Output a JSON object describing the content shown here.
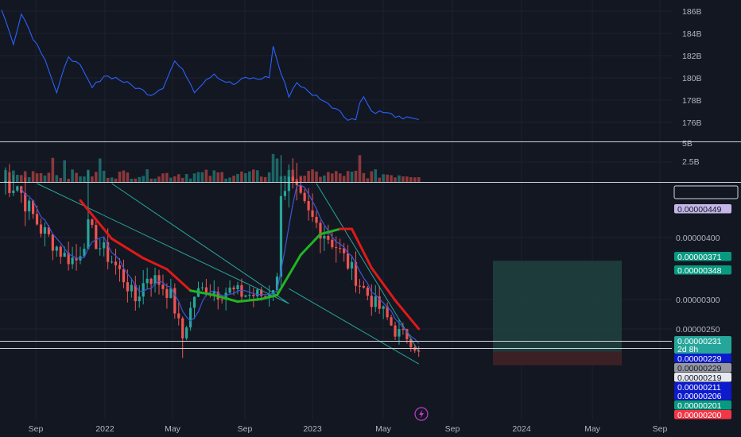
{
  "colors": {
    "background": "#131722",
    "grid": "#1e222d",
    "separator": "#d1d4dc",
    "bull": "#26a69a",
    "bear": "#ef5350",
    "supply_line": "#2962ff",
    "sma_fast": "#3d56d6",
    "sma_slow_bear": "#e01919",
    "sma_slow_bull": "#21b521",
    "trend_line": "#26a69a",
    "target_zone": "#1f3f3e",
    "stop_zone": "#3d2127",
    "lightning": "#c03ccd"
  },
  "time_axis": [
    "Sep",
    "2022",
    "May",
    "Sep",
    "2023",
    "May",
    "Sep",
    "2024",
    "May",
    "Sep"
  ],
  "supply_pane": {
    "tick_labels": [
      "186B",
      "184B",
      "182B",
      "180B",
      "178B",
      "176B"
    ]
  },
  "volume_pane": {
    "tick_labels": [
      "5B",
      "2.5B"
    ]
  },
  "price_pane": {
    "tick_labels": [
      "0.00000400",
      "0.00000300",
      "0.00000250"
    ],
    "tags": [
      {
        "text": "",
        "bg": "#131722",
        "fg": "#d1d4dc",
        "border": "#d1d4dc",
        "i": 0
      },
      {
        "text": "0.00000449",
        "bg": "#c5b6e8",
        "fg": "#131722",
        "i": 1
      },
      {
        "text": "0.00000371",
        "bg": "#089981",
        "fg": "#ffffff",
        "i": 2
      },
      {
        "text": "0.00000348",
        "bg": "#089981",
        "fg": "#ffffff",
        "i": 3
      },
      {
        "text": "0.00000231",
        "bg": "#26a69a",
        "fg": "#ffffff",
        "sub": "2d 8h",
        "i": 4
      },
      {
        "text": "0.00000229",
        "bg": "#0c1bcc",
        "fg": "#ffffff",
        "i": 5
      },
      {
        "text": "0.00000229",
        "bg": "#9598a1",
        "fg": "#131722",
        "i": 6
      },
      {
        "text": "0.00000219",
        "bg": "#e6e9f0",
        "fg": "#131722",
        "i": 7
      },
      {
        "text": "0.00000211",
        "bg": "#0c1bcc",
        "fg": "#ffffff",
        "i": 8
      },
      {
        "text": "0.00000206",
        "bg": "#0c1bcc",
        "fg": "#ffffff",
        "i": 9
      },
      {
        "text": "0.00000201",
        "bg": "#089981",
        "fg": "#ffffff",
        "i": 10
      },
      {
        "text": "0.00000200",
        "bg": "#f23645",
        "fg": "#ffffff",
        "i": 11
      }
    ]
  },
  "chart_data": {
    "type": "candlestick",
    "timeframe": "weekly",
    "x_range": [
      "2021-08",
      "2024-09"
    ],
    "price_ylim": [
      1.9e-06,
      4.9e-06
    ],
    "supply_ylim": [
      174800000000,
      187000000000
    ],
    "volume_ylim": [
      0,
      5000000000
    ],
    "series": {
      "price_anchors": [
        [
          0,
          4.93e-06
        ],
        [
          4,
          4.88e-06
        ],
        [
          7,
          4.5e-06
        ],
        [
          10,
          4.2e-06
        ],
        [
          13,
          4e-06
        ],
        [
          16,
          3.78e-06
        ],
        [
          19,
          3.72e-06
        ],
        [
          22,
          4.2e-06
        ],
        [
          25,
          3.92e-06
        ],
        [
          28,
          3.72e-06
        ],
        [
          31,
          3.44e-06
        ],
        [
          34,
          3.1e-06
        ],
        [
          37,
          3.48e-06
        ],
        [
          40,
          3.38e-06
        ],
        [
          43,
          3.18e-06
        ],
        [
          46,
          2.52e-06
        ],
        [
          49,
          3.18e-06
        ],
        [
          52,
          3.3e-06
        ],
        [
          55,
          3.22e-06
        ],
        [
          58,
          3.25e-06
        ],
        [
          61,
          3.2e-06
        ],
        [
          64,
          3.18e-06
        ],
        [
          67,
          3.18e-06
        ],
        [
          70,
          3.4e-06
        ],
        [
          71,
          4.85e-06
        ],
        [
          73,
          4.9e-06
        ],
        [
          75,
          4.7e-06
        ],
        [
          78,
          4.4e-06
        ],
        [
          82,
          4.15e-06
        ],
        [
          85,
          3.94e-06
        ],
        [
          88,
          3.66e-06
        ],
        [
          91,
          3.36e-06
        ],
        [
          94,
          3.1e-06
        ],
        [
          97,
          2.92e-06
        ],
        [
          100,
          2.62e-06
        ],
        [
          103,
          2.55e-06
        ],
        [
          106,
          2.31e-06
        ]
      ],
      "supply_anchors": [
        [
          0,
          186.2
        ],
        [
          3,
          183.0
        ],
        [
          5,
          185.9
        ],
        [
          8,
          183.6
        ],
        [
          11,
          181.8
        ],
        [
          14,
          178.6
        ],
        [
          17,
          182.0
        ],
        [
          20,
          181.0
        ],
        [
          23,
          179.1
        ],
        [
          26,
          180.2
        ],
        [
          29,
          180.0
        ],
        [
          32,
          179.5
        ],
        [
          35,
          179.0
        ],
        [
          38,
          178.5
        ],
        [
          41,
          179.2
        ],
        [
          44,
          181.5
        ],
        [
          47,
          180.2
        ],
        [
          49,
          178.8
        ],
        [
          52,
          179.9
        ],
        [
          54,
          180.4
        ],
        [
          56,
          179.8
        ],
        [
          59,
          179.4
        ],
        [
          62,
          180.0
        ],
        [
          65,
          179.9
        ],
        [
          68,
          180.1
        ],
        [
          69,
          182.8
        ],
        [
          71,
          180.4
        ],
        [
          73,
          178.4
        ],
        [
          75,
          179.6
        ],
        [
          78,
          178.7
        ],
        [
          81,
          178.2
        ],
        [
          83,
          177.6
        ],
        [
          86,
          177.1
        ],
        [
          88,
          176.2
        ],
        [
          90,
          176.3
        ],
        [
          91,
          177.9
        ],
        [
          92,
          178.3
        ],
        [
          94,
          177.0
        ],
        [
          97,
          176.9
        ],
        [
          100,
          176.6
        ],
        [
          102,
          176.2
        ],
        [
          104,
          176.5
        ],
        [
          106,
          176.3
        ]
      ],
      "sma_slow": [
        [
          20,
          4.64e-06
        ],
        [
          28,
          4.05e-06
        ],
        [
          36,
          3.75e-06
        ],
        [
          42,
          3.58e-06
        ],
        [
          48,
          3.25e-06
        ],
        [
          54,
          3.18e-06
        ],
        [
          60,
          3.08e-06
        ],
        [
          66,
          3.12e-06
        ],
        [
          70,
          3.18e-06
        ],
        [
          76,
          3.8e-06
        ],
        [
          81,
          4.12e-06
        ],
        [
          86,
          4.2e-06
        ],
        [
          89,
          4.2e-06
        ],
        [
          94,
          3.6e-06
        ],
        [
          100,
          3.1e-06
        ],
        [
          106,
          2.66e-06
        ]
      ],
      "levels": {
        "tp2": 3.71e-06,
        "tp1": 3.48e-06,
        "last": 2.31e-06,
        "support": 2.19e-06,
        "stop": 2e-06,
        "prev_high": 4.49e-06
      }
    }
  }
}
